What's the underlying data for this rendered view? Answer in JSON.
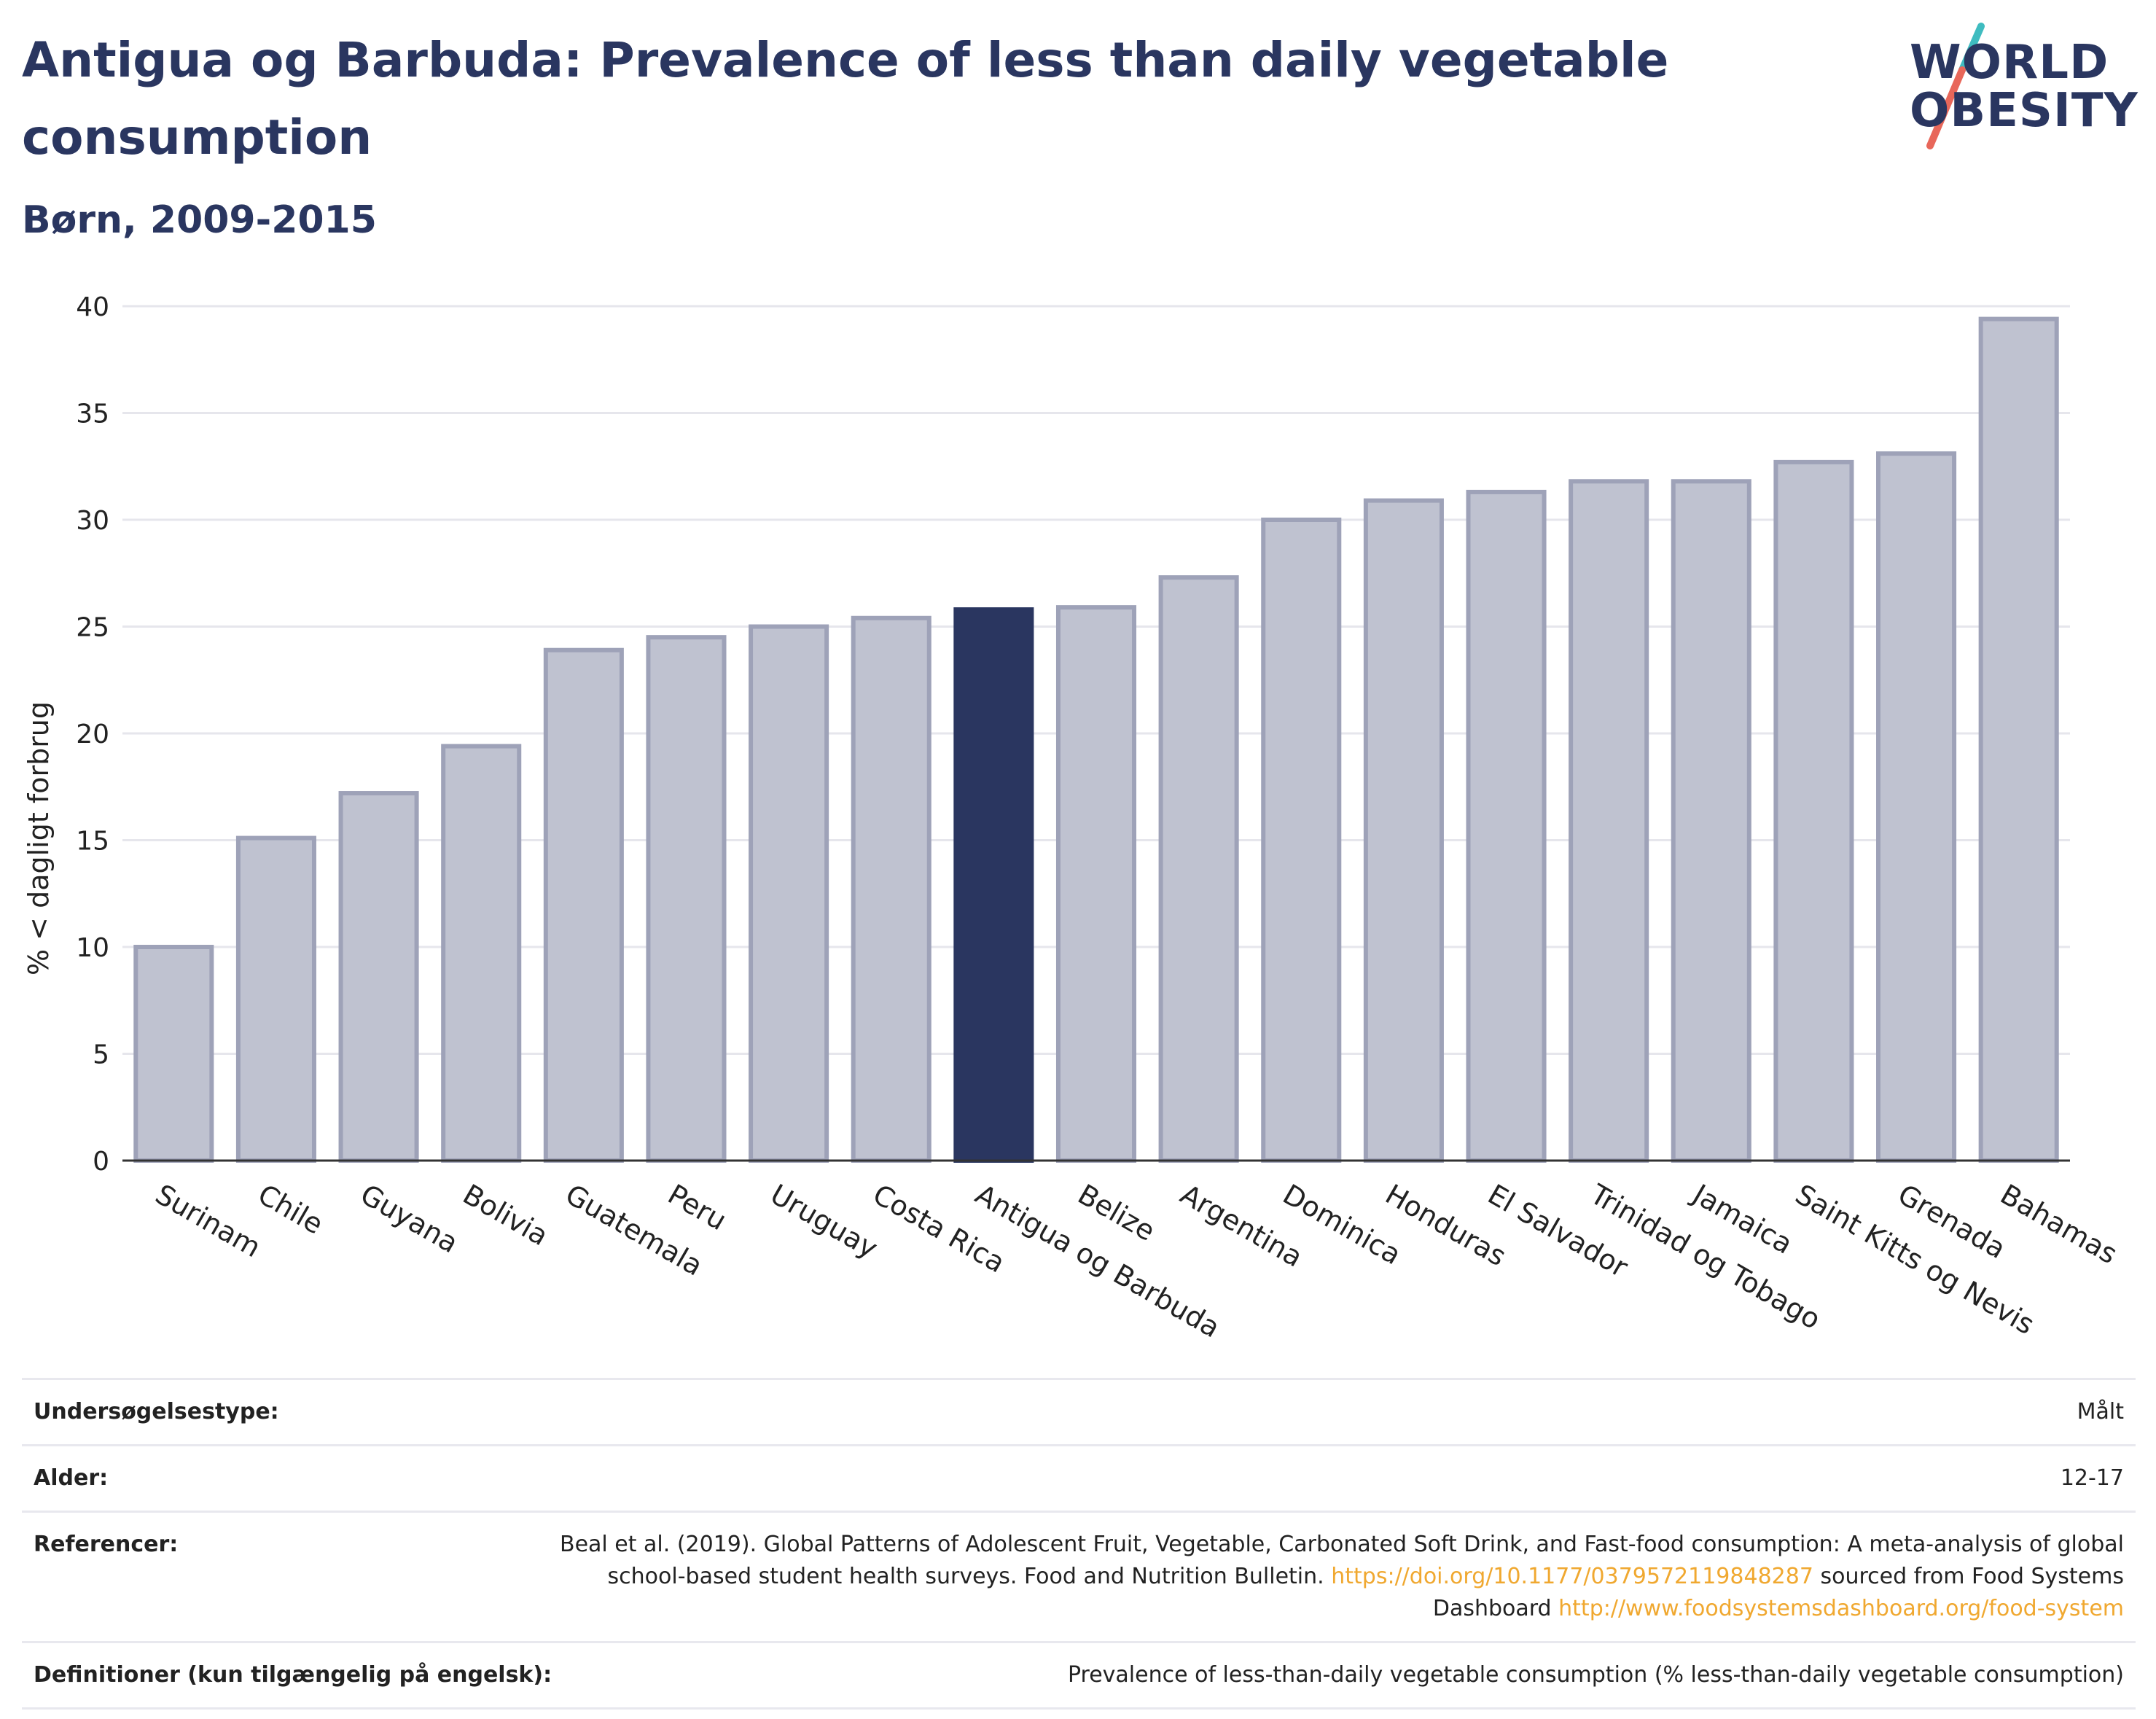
{
  "header": {
    "title": "Antigua og Barbuda: Prevalence of less than daily vegetable consumption",
    "subtitle": "Børn, 2009-2015"
  },
  "logo": {
    "line1": "WORLD",
    "line2": "OBESITY",
    "colors": {
      "text": "#2a3660",
      "slash_top": "#3fbcc0",
      "slash_bottom": "#e8675a"
    }
  },
  "chart_data": {
    "type": "bar",
    "title": "Antigua og Barbuda: Prevalence of less than daily vegetable consumption",
    "subtitle": "Børn, 2009-2015",
    "ylabel": "% < dagligt forbrug",
    "xlabel": "",
    "ylim": [
      0,
      40
    ],
    "yticks": [
      0,
      5,
      10,
      15,
      20,
      25,
      30,
      35,
      40
    ],
    "grid": true,
    "highlight": "Antigua og Barbuda",
    "colors": {
      "bar": "#bfc2d0",
      "bar_border": "#9ea2b8",
      "highlight": "#2a3660",
      "grid": "#e6e6ec"
    },
    "categories": [
      "Surinam",
      "Chile",
      "Guyana",
      "Bolivia",
      "Guatemala",
      "Peru",
      "Uruguay",
      "Costa Rica",
      "Antigua og Barbuda",
      "Belize",
      "Argentina",
      "Dominica",
      "Honduras",
      "El Salvador",
      "Trinidad og Tobago",
      "Jamaica",
      "Saint Kitts og Nevis",
      "Grenada",
      "Bahamas"
    ],
    "values": [
      10.0,
      15.1,
      17.2,
      19.4,
      23.9,
      24.5,
      25.0,
      25.4,
      25.8,
      25.9,
      27.3,
      30.0,
      30.9,
      31.3,
      31.8,
      31.8,
      32.7,
      33.1,
      39.4
    ]
  },
  "info": {
    "survey": {
      "label": "Undersøgelsestype:",
      "value": "Målt"
    },
    "age": {
      "label": "Alder:",
      "value": "12-17"
    },
    "refs": {
      "label": "Referencer:",
      "text1": "Beal et al. (2019). Global Patterns of Adolescent Fruit, Vegetable, Carbonated Soft Drink, and Fast-food consumption: A meta-analysis of global school-based student health surveys. Food and Nutrition Bulletin.",
      "link1": "https://doi.org/10.1177/0379572119848287",
      "text2": "sourced from Food Systems Dashboard",
      "link2": "http://www.foodsystemsdashboard.org/food-system"
    },
    "defs": {
      "label": "Definitioner (kun tilgængelig på engelsk):",
      "value": "Prevalence of less-than-daily vegetable consumption (% less-than-daily vegetable consumption)"
    }
  }
}
